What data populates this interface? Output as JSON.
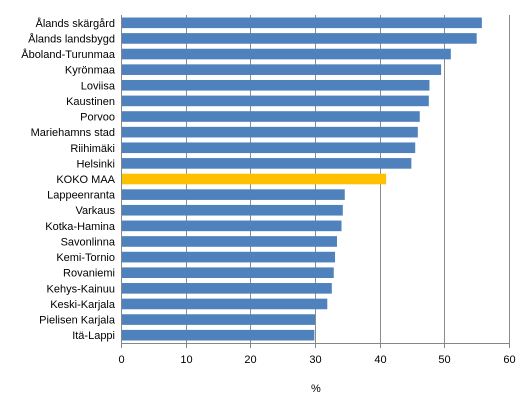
{
  "chart_data": {
    "type": "bar",
    "orientation": "horizontal",
    "categories": [
      "Ålands skärgård",
      "Ålands landsbygd",
      "Åboland-Turunmaa",
      "Kyrönmaa",
      "Loviisa",
      "Kaustinen",
      "Porvoo",
      "Mariehamns stad",
      "Riihimäki",
      "Helsinki",
      "KOKO MAA",
      "Lappeenranta",
      "Varkaus",
      "Kotka-Hamina",
      "Savonlinna",
      "Kemi-Tornio",
      "Rovaniemi",
      "Kehys-Kainuu",
      "Keski-Karjala",
      "Pielisen Karjala",
      "Itä-Lappi"
    ],
    "values": [
      55.8,
      55.0,
      51.0,
      49.5,
      47.7,
      47.6,
      46.2,
      45.9,
      45.5,
      44.9,
      41.0,
      34.6,
      34.3,
      34.1,
      33.4,
      33.1,
      32.9,
      32.6,
      31.9,
      30.0,
      29.9
    ],
    "highlight_category": "KOKO MAA",
    "colors": {
      "bar": "#4f81bd",
      "highlight": "#ffc000",
      "grid": "#8c8c8c",
      "axis": "#868686"
    },
    "xlim": [
      0,
      60
    ],
    "xticks": [
      0,
      10,
      20,
      30,
      40,
      50,
      60
    ],
    "xlabel": "%",
    "ylabel": "",
    "title": "",
    "grid": true,
    "legend": "none"
  }
}
